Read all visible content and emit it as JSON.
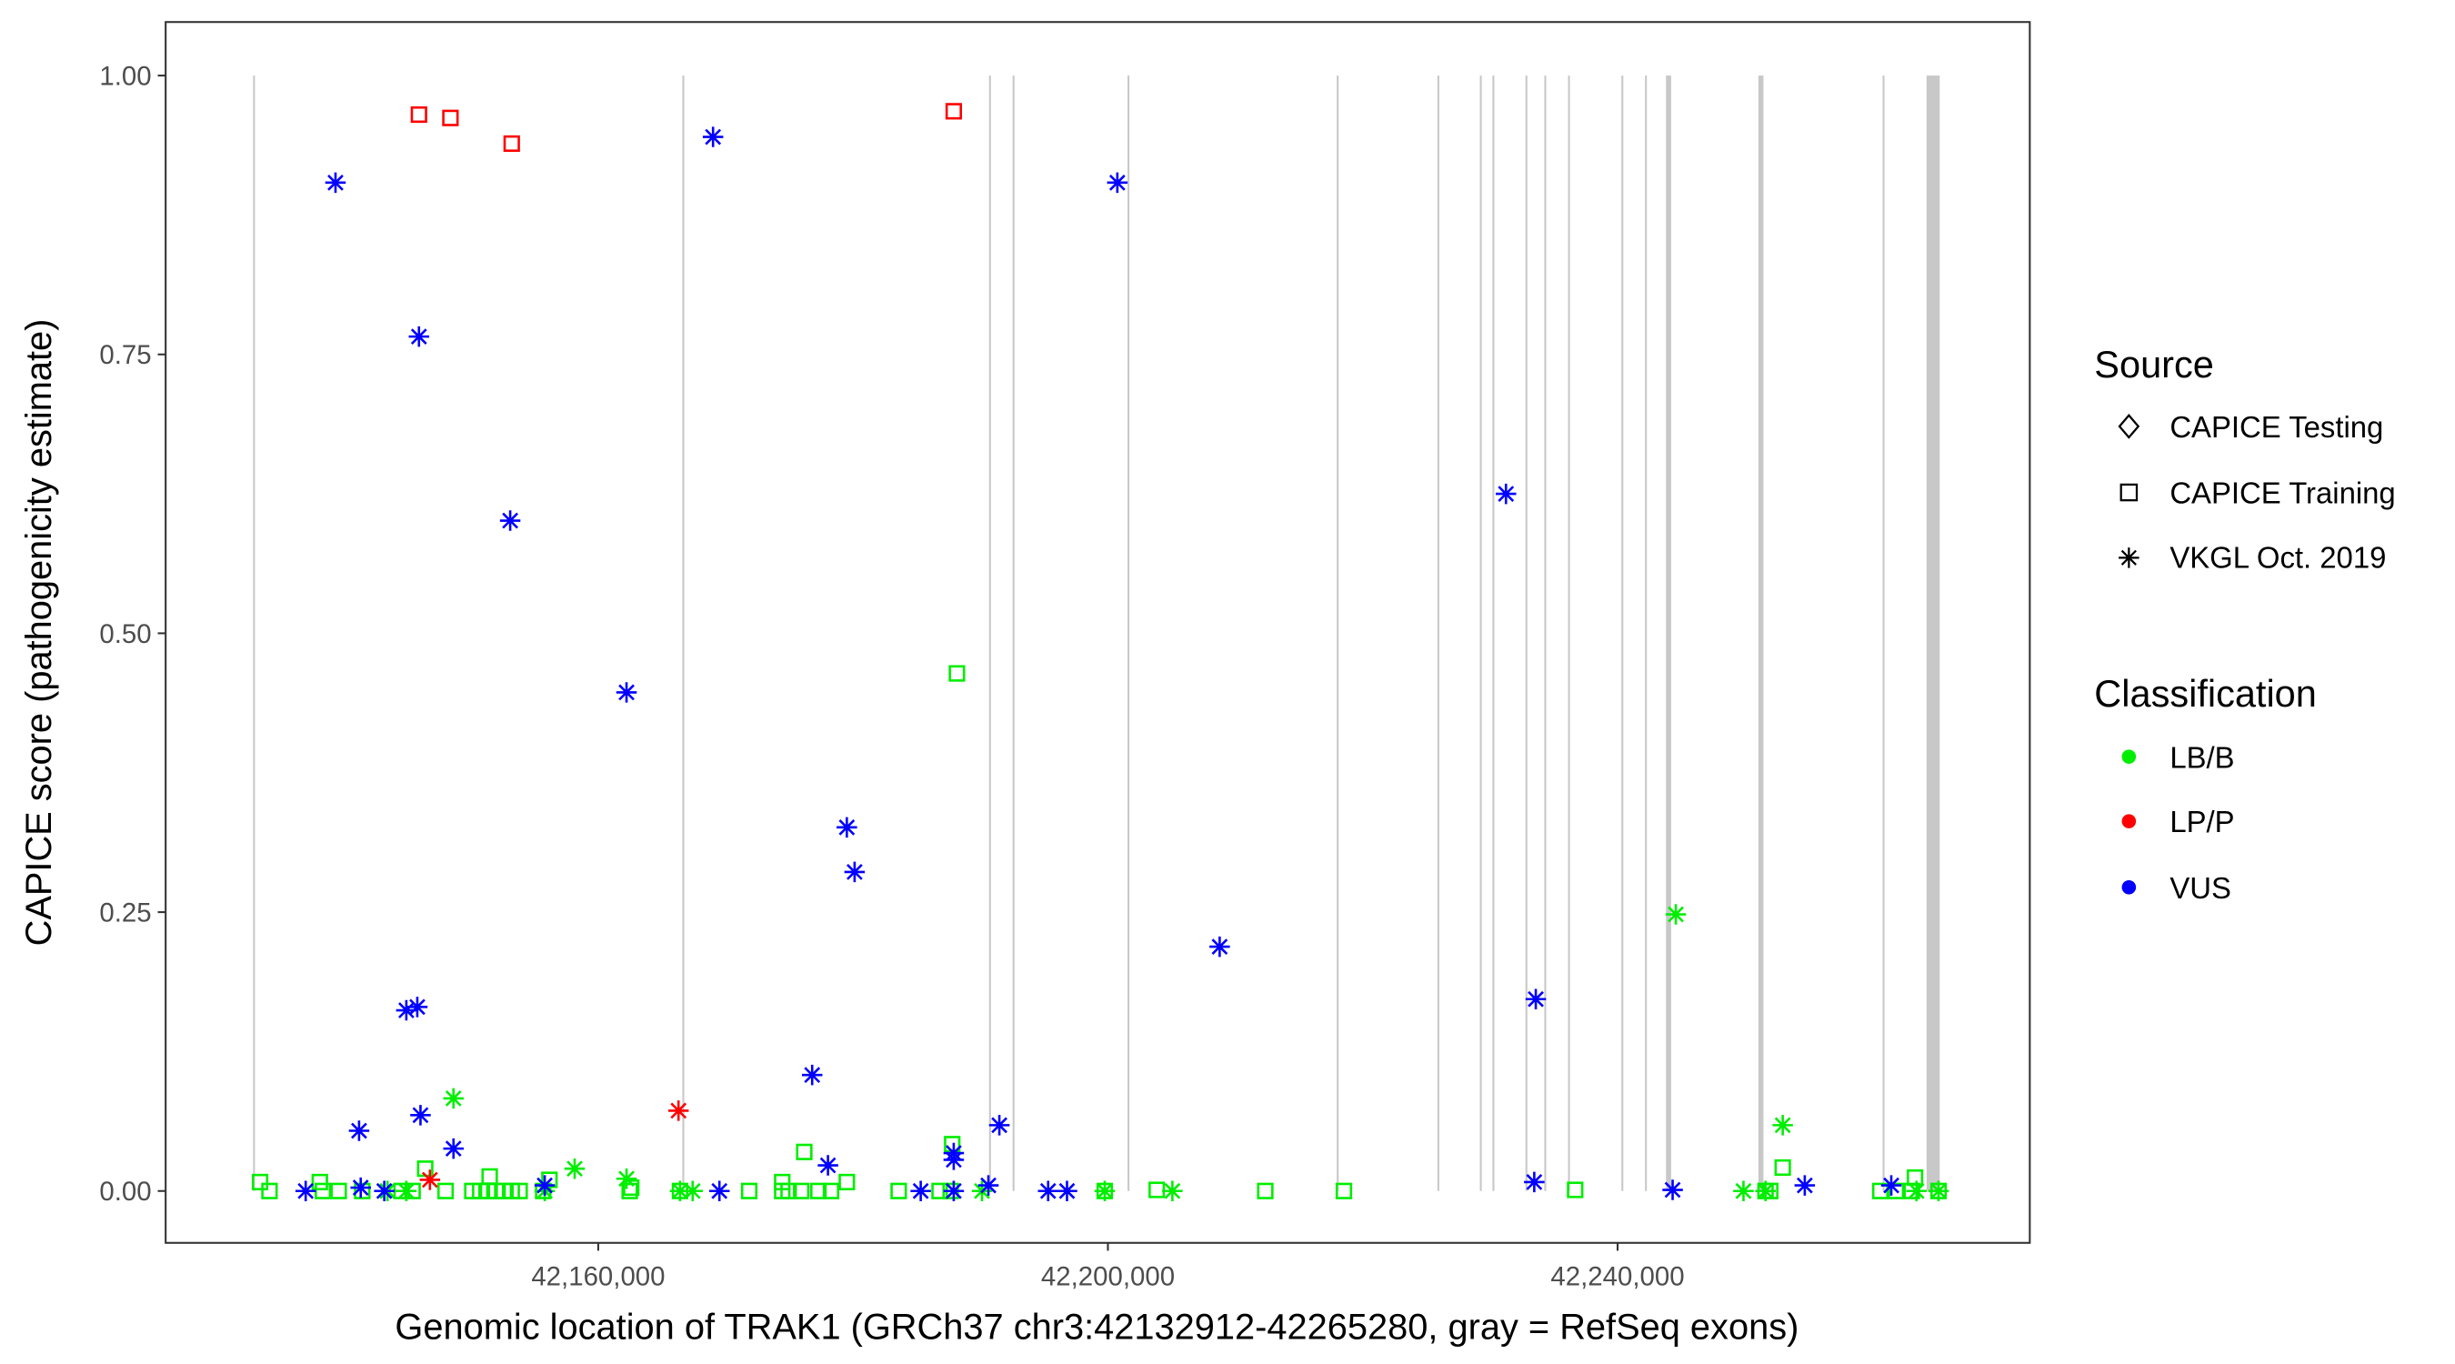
{
  "chart_data": {
    "type": "scatter",
    "xlabel": "Genomic location of TRAK1 (GRCh37 chr3:42132912-42265280, gray = RefSeq exons)",
    "ylabel": "CAPICE score (pathogenicity estimate)",
    "xlim": [
      42126050,
      42272350
    ],
    "ylim": [
      -0.0465,
      1.048
    ],
    "x_ticks": [
      42160000,
      42200000,
      42240000
    ],
    "x_tick_labels": [
      "42,160,000",
      "42,200,000",
      "42,240,000"
    ],
    "y_ticks": [
      0,
      0.25,
      0.5,
      0.75,
      1.0
    ],
    "y_tick_labels": [
      "0.00",
      "0.25",
      "0.50",
      "0.75",
      "1.00"
    ],
    "grid": false,
    "exon_color": "#c8c8c8",
    "exons": [
      [
        42132912,
        42133060
      ],
      [
        42166600,
        42166750
      ],
      [
        42190670,
        42190800
      ],
      [
        42192520,
        42192650
      ],
      [
        42201540,
        42201680
      ],
      [
        42217960,
        42218100
      ],
      [
        42225860,
        42226000
      ],
      [
        42229190,
        42229330
      ],
      [
        42230180,
        42230320
      ],
      [
        42232770,
        42232910
      ],
      [
        42234250,
        42234390
      ],
      [
        42236110,
        42236250
      ],
      [
        42240300,
        42240440
      ],
      [
        42242150,
        42242290
      ],
      [
        42243800,
        42244200
      ],
      [
        42251050,
        42251450
      ],
      [
        42260800,
        42260940
      ],
      [
        42264250,
        42265280
      ]
    ],
    "legend": {
      "placement": "right",
      "source_title": "Source",
      "sources": [
        {
          "name": "CAPICE Testing",
          "shape": "diamond"
        },
        {
          "name": "CAPICE Training",
          "shape": "square"
        },
        {
          "name": "VKGL Oct. 2019",
          "shape": "asterisk"
        }
      ],
      "class_title": "Classification",
      "classes": [
        {
          "name": "LB/B",
          "color": "#00ee00"
        },
        {
          "name": "LP/P",
          "color": "#ff0000"
        },
        {
          "name": "VUS",
          "color": "#0000ff"
        }
      ]
    },
    "series": [
      {
        "source": "CAPICE Training",
        "class": "LB/B",
        "points": [
          [
            42188150,
            0.464
          ],
          [
            42176170,
            0.035
          ],
          [
            42187780,
            0.042
          ],
          [
            42146420,
            0.02
          ],
          [
            42252960,
            0.021
          ],
          [
            42151480,
            0.013
          ],
          [
            42133460,
            0.008
          ],
          [
            42138150,
            0.008
          ],
          [
            42174440,
            0.008
          ],
          [
            42179510,
            0.008
          ],
          [
            42263340,
            0.012
          ],
          [
            42134200,
            0
          ],
          [
            42138390,
            0
          ],
          [
            42139630,
            0
          ],
          [
            42141480,
            0
          ],
          [
            42144570,
            0
          ],
          [
            42145430,
            0
          ],
          [
            42148020,
            0
          ],
          [
            42150120,
            0
          ],
          [
            42150740,
            0
          ],
          [
            42151360,
            0
          ],
          [
            42151980,
            0
          ],
          [
            42152590,
            0
          ],
          [
            42153210,
            0
          ],
          [
            42153830,
            0
          ],
          [
            42155680,
            0
          ],
          [
            42156170,
            0.01
          ],
          [
            42162470,
            0
          ],
          [
            42162590,
            0.003
          ],
          [
            42166420,
            0
          ],
          [
            42171850,
            0
          ],
          [
            42174440,
            0
          ],
          [
            42174940,
            0
          ],
          [
            42175930,
            0
          ],
          [
            42177280,
            0
          ],
          [
            42178270,
            0
          ],
          [
            42183580,
            0
          ],
          [
            42186790,
            0
          ],
          [
            42187660,
            0
          ],
          [
            42199750,
            0
          ],
          [
            42203830,
            0.001
          ],
          [
            42212350,
            0
          ],
          [
            42218520,
            0
          ],
          [
            42236670,
            0.001
          ],
          [
            42251610,
            0
          ],
          [
            42251980,
            0
          ],
          [
            42260620,
            0
          ],
          [
            42261850,
            0
          ],
          [
            42263090,
            0
          ],
          [
            42265190,
            0
          ]
        ]
      },
      {
        "source": "CAPICE Training",
        "class": "LP/P",
        "points": [
          [
            42145930,
            0.965
          ],
          [
            42148400,
            0.962
          ],
          [
            42153210,
            0.939
          ],
          [
            42187900,
            0.968
          ]
        ]
      },
      {
        "source": "VKGL Oct. 2019",
        "class": "LB/B",
        "points": [
          [
            42244570,
            0.248
          ],
          [
            42148640,
            0.083
          ],
          [
            42252960,
            0.059
          ],
          [
            42158150,
            0.02
          ],
          [
            42162220,
            0.011
          ],
          [
            42143460,
            0
          ],
          [
            42144940,
            0
          ],
          [
            42155800,
            0
          ],
          [
            42166420,
            0
          ],
          [
            42167410,
            0
          ],
          [
            42190120,
            0
          ],
          [
            42199750,
            0
          ],
          [
            42205060,
            0
          ],
          [
            42249880,
            0
          ],
          [
            42251610,
            0
          ],
          [
            42263460,
            0
          ],
          [
            42265190,
            0
          ]
        ]
      },
      {
        "source": "VKGL Oct. 2019",
        "class": "LP/P",
        "points": [
          [
            42166300,
            0.072
          ],
          [
            42146790,
            0.01
          ]
        ]
      },
      {
        "source": "VKGL Oct. 2019",
        "class": "VUS",
        "points": [
          [
            42139380,
            0.904
          ],
          [
            42169010,
            0.945
          ],
          [
            42200740,
            0.904
          ],
          [
            42145930,
            0.766
          ],
          [
            42153090,
            0.601
          ],
          [
            42231240,
            0.625
          ],
          [
            42162220,
            0.447
          ],
          [
            42179510,
            0.326
          ],
          [
            42180120,
            0.286
          ],
          [
            42208770,
            0.219
          ],
          [
            42233580,
            0.172
          ],
          [
            42144940,
            0.162
          ],
          [
            42145800,
            0.165
          ],
          [
            42176790,
            0.104
          ],
          [
            42141230,
            0.054
          ],
          [
            42146050,
            0.068
          ],
          [
            42148640,
            0.038
          ],
          [
            42191480,
            0.059
          ],
          [
            42178030,
            0.023
          ],
          [
            42187900,
            0.034
          ],
          [
            42187900,
            0.028
          ],
          [
            42233460,
            0.008
          ],
          [
            42137040,
            0
          ],
          [
            42141360,
            0.003
          ],
          [
            42143210,
            0
          ],
          [
            42155800,
            0.005
          ],
          [
            42169510,
            0
          ],
          [
            42185310,
            0
          ],
          [
            42187900,
            0
          ],
          [
            42190620,
            0.005
          ],
          [
            42195310,
            0
          ],
          [
            42196790,
            0
          ],
          [
            42244320,
            0.001
          ],
          [
            42254690,
            0.005
          ],
          [
            42261480,
            0.005
          ]
        ]
      }
    ]
  }
}
